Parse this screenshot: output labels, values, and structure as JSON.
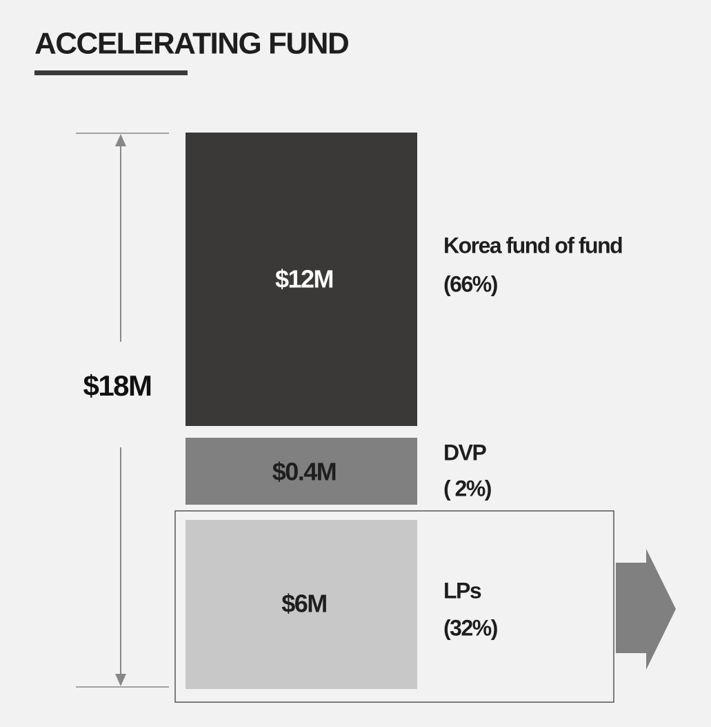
{
  "title": "ACCELERATING FUND",
  "total": "$18M",
  "blocks": [
    {
      "amount": "$12M",
      "name": "Korea fund of fund",
      "share": "(66%)"
    },
    {
      "amount": "$0.4M",
      "name": "DVP",
      "share": "( 2%)"
    },
    {
      "amount": "$6M",
      "name": "LPs",
      "share": "(32%)"
    }
  ]
}
